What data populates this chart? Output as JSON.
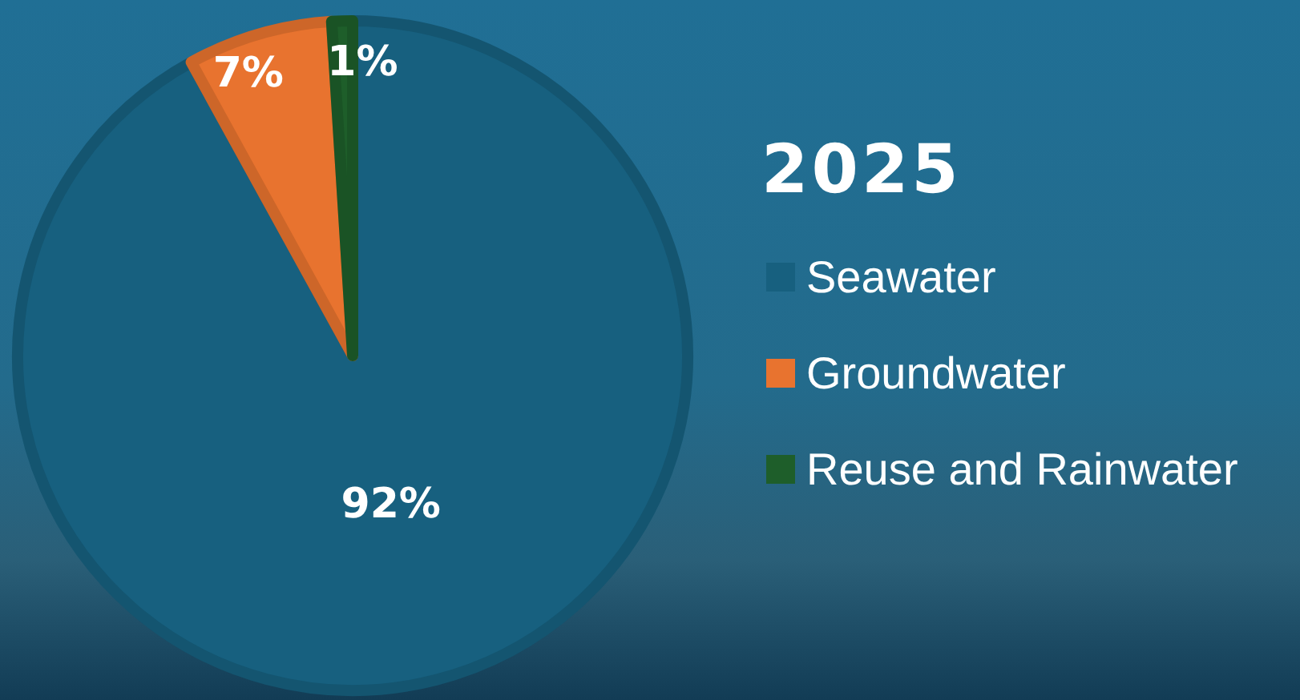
{
  "chart_data": {
    "type": "pie",
    "title": "2025",
    "categories": [
      "Seawater",
      "Groundwater",
      "Reuse and Rainwater"
    ],
    "values": [
      92,
      7,
      1
    ],
    "colors": [
      "#17607f",
      "#e8732f",
      "#1e5e2a"
    ],
    "value_labels": [
      "92%",
      "7%",
      "1%"
    ],
    "legend": "right"
  }
}
